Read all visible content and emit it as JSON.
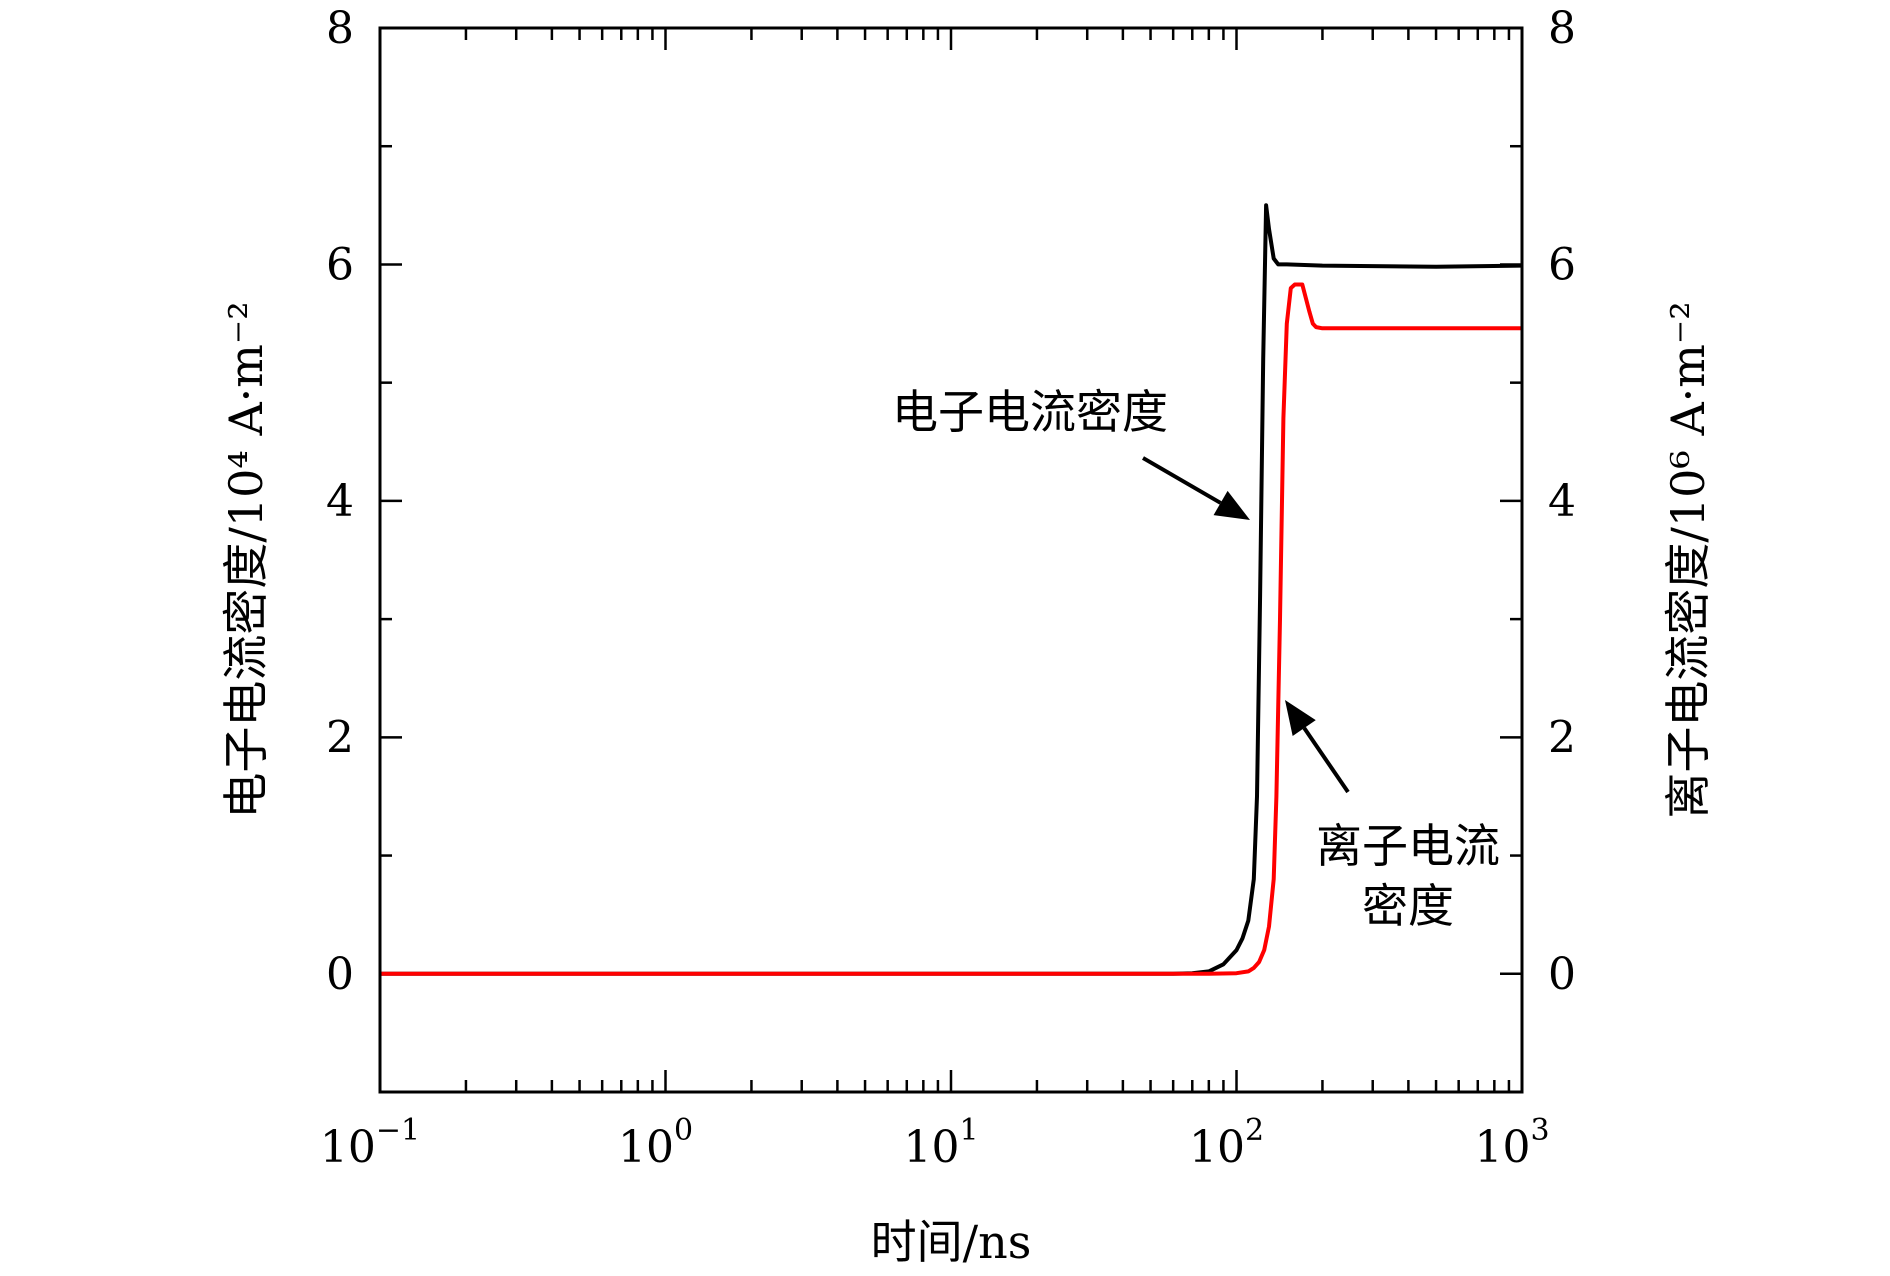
{
  "chart_data": {
    "type": "line",
    "x_scale": "log",
    "xlim": [
      0.1,
      1000
    ],
    "ylim_left": [
      -1,
      8
    ],
    "ylim_right": [
      -1,
      8
    ],
    "grid": false,
    "xlabel": "时间/ns",
    "ylabel_left": "电子电流密度/10⁴ A·m⁻²",
    "ylabel_right": "离子电流密度/10⁶ A·m⁻²",
    "x_ticks": [
      {
        "value": 0.1,
        "base": "10",
        "exp": "−1"
      },
      {
        "value": 1,
        "base": "10",
        "exp": "0"
      },
      {
        "value": 10,
        "base": "10",
        "exp": "1"
      },
      {
        "value": 100,
        "base": "10",
        "exp": "2"
      },
      {
        "value": 1000,
        "base": "10",
        "exp": "3"
      }
    ],
    "y_ticks_left": [
      "0",
      "2",
      "4",
      "6",
      "8"
    ],
    "y_ticks_right": [
      "0",
      "2",
      "4",
      "6",
      "8"
    ],
    "series": [
      {
        "color": "#000000",
        "axis": "left",
        "x": [
          0.1,
          10,
          60,
          70,
          80,
          90,
          100,
          105,
          110,
          115,
          118,
          121,
          124,
          127,
          130,
          135,
          140,
          150,
          200,
          500,
          1000
        ],
        "y": [
          0,
          0,
          0,
          0.005,
          0.02,
          0.08,
          0.2,
          0.3,
          0.45,
          0.8,
          1.5,
          3.2,
          5.2,
          6.5,
          6.3,
          6.05,
          6.0,
          6.0,
          5.99,
          5.98,
          5.99
        ]
      },
      {
        "color": "#ff0000",
        "axis": "left",
        "x": [
          0.1,
          10,
          80,
          100,
          110,
          115,
          120,
          125,
          130,
          135,
          138,
          142,
          146,
          150,
          155,
          160,
          170,
          180,
          185,
          190,
          200,
          300,
          1000
        ],
        "y": [
          0,
          0,
          0,
          0.005,
          0.02,
          0.05,
          0.1,
          0.2,
          0.4,
          0.8,
          1.5,
          3.0,
          4.7,
          5.5,
          5.8,
          5.83,
          5.83,
          5.6,
          5.5,
          5.47,
          5.46,
          5.46,
          5.46
        ]
      }
    ],
    "annotations": [
      {
        "lines": [
          "电子电流密度"
        ]
      },
      {
        "lines": [
          "离子电流",
          "密度"
        ]
      }
    ]
  }
}
